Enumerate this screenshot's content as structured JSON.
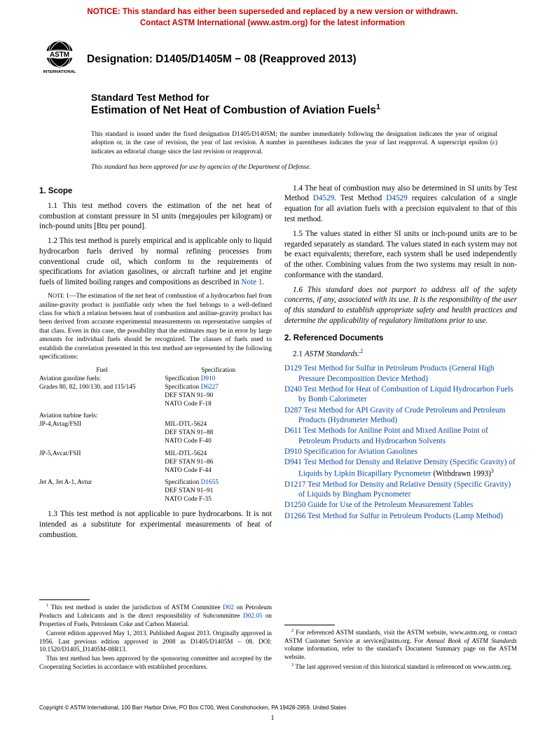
{
  "notice": {
    "line1": "NOTICE: This standard has either been superseded and replaced by a new version or withdrawn.",
    "line2": "Contact ASTM International (www.astm.org) for the latest information",
    "color": "#cc0000"
  },
  "logo": {
    "text_top": "INTERNATIONAL",
    "fill": "#000000"
  },
  "designation": "Designation: D1405/D1405M − 08 (Reapproved 2013)",
  "title": {
    "lead": "Standard Test Method for",
    "main": "Estimation of Net Heat of Combustion of Aviation Fuels",
    "sup": "1"
  },
  "issuance": "This standard is issued under the fixed designation D1405/D1405M; the number immediately following the designation indicates the year of original adoption or, in the case of revision, the year of last revision. A number in parentheses indicates the year of last reapproval. A superscript epsilon (ε) indicates an editorial change since the last revision or reapproval.",
  "dod": "This standard has been approved for use by agencies of the Department of Defense.",
  "left": {
    "h1": "1. Scope",
    "p11": "1.1 This test method covers the estimation of the net heat of combustion at constant pressure in SI units (megajoules per kilogram) or inch-pound units [Btu per pound].",
    "p12a": "1.2 This test method is purely empirical and is applicable only to liquid hydrocarbon fuels derived by normal refining processes from conventional crude oil, which conform to the requirements of specifications for aviation gasolines, or aircraft turbine and jet engine fuels of limited boiling ranges and compositions as described in ",
    "p12_link": "Note 1",
    "p12b": ".",
    "note1a": "N",
    "note1b": "OTE",
    "note1c": " 1—The estimation of the net heat of combustion of a hydrocarbon fuel from aniline-gravity product is justifiable only when the fuel belongs to a well-defined class for which a relation between heat of combustion and aniline-gravity product has been derived from accurate experimental measurements on representative samples of that class. Even in this case, the possibility that the estimates may be in error by large amounts for individual fuels should be recognized. The classes of fuels used to establish the correlation presented in this test method are represented by the following specifications:",
    "table": {
      "head_l": "Fuel",
      "head_r": "Specification",
      "g1_l1": "Aviation gasoline fuels:",
      "g1_l2": "Grades 80, 82, 100/130, and 115/145",
      "g1_r1a": "Specification ",
      "g1_r1b": "D910",
      "g1_r2a": "Specification ",
      "g1_r2b": "D6227",
      "g1_r3": "DEF STAN 91–90",
      "g1_r4": "NATO Code F-18",
      "g2_l1": "Aviation turbine fuels:",
      "g2_l2": "JP-4,Avtag/FSII",
      "g2_r1": "MIL-DTL-5624",
      "g2_r2": "DEF STAN 91–88",
      "g2_r3": "NATO Code F-40",
      "g3_l1": "JP-5,Avcat/FSII",
      "g3_r1": "MIL-DTL-5624",
      "g3_r2": "DEF STAN 91–86",
      "g3_r3": "NATO Code F-44",
      "g4_l1": "Jet A, Jet A-1, Avtur",
      "g4_r1a": "Specification ",
      "g4_r1b": "D1655",
      "g4_r2": "DEF STAN 91–91",
      "g4_r3": "NATO Code F-35"
    },
    "p13": "1.3 This test method is not applicable to pure hydrocarbons. It is not intended as a substitute for experimental measurements of heat of combustion.",
    "fn1a": " This test method is under the jurisdiction of ASTM Committee ",
    "fn1_link1": "D02",
    "fn1b": " on Petroleum Products and Lubricants and is the direct responsibility of Subcommittee ",
    "fn1_link2": "D02.05",
    "fn1c": " on Properties of Fuels, Petroleum Coke and Carbon Material.",
    "fn1d": "Current edition approved May 1, 2013. Published August 2013. Originally approved in 1956. Last previous edition approved in 2008 as D1405/D1405M – 08. DOI: 10.1520/D1405_D1405M-08R13.",
    "fn1e": "This test method has been approved by the sponsoring committee and accepted by the Cooperating Societies in accordance with established procedures."
  },
  "right": {
    "p14a": "1.4 The heat of combustion may also be determined in SI units by Test Method ",
    "p14_l1": "D4529",
    "p14b": ". Test Method ",
    "p14_l2": "D4529",
    "p14c": " requires calculation of a single equation for all aviation fuels with a precision equivalent to that of this test method.",
    "p15": "1.5 The values stated in either SI units or inch-pound units are to be regarded separately as standard. The values stated in each system may not be exact equivalents; therefore, each system shall be used independently of the other. Combining values from the two systems may result in non-conformance with the standard.",
    "p16": "1.6 This standard does not purport to address all of the safety concerns, if any, associated with its use. It is the responsibility of the user of this standard to establish appropriate safety and health practices and determine the applicability of regulatory limitations prior to use.",
    "h2": "2. Referenced Documents",
    "p21a": "2.1 ",
    "p21b": "ASTM Standards:",
    "p21sup": "2",
    "refs": [
      {
        "id": "D129",
        "t": "Test Method for Sulfur in Petroleum Products (General High Pressure Decomposition Device Method)"
      },
      {
        "id": "D240",
        "t": "Test Method for Heat of Combustion of Liquid Hydrocarbon Fuels by Bomb Calorimeter"
      },
      {
        "id": "D287",
        "t": "Test Method for API Gravity of Crude Petroleum and Petroleum Products (Hydrometer Method)"
      },
      {
        "id": "D611",
        "t": "Test Methods for Aniline Point and Mixed Aniline Point of Petroleum Products and Hydrocarbon Solvents"
      },
      {
        "id": "D910",
        "t": "Specification for Aviation Gasolines"
      },
      {
        "id": "D941",
        "t": "Test Method for Density and Relative Density (Specific Gravity) of Liquids by Lipkin Bicapillary Pycnometer",
        "wd": " (Withdrawn 1993)",
        "sup": "3"
      },
      {
        "id": "D1217",
        "t": "Test Method for Density and Relative Density (Specific Gravity) of Liquids by Bingham Pycnometer"
      },
      {
        "id": "D1250",
        "t": "Guide for Use of the Petroleum Measurement Tables"
      },
      {
        "id": "D1266",
        "t": "Test Method for Sulfur in Petroleum Products (Lamp Method)"
      }
    ],
    "fn2a": " For referenced ASTM standards, visit the ASTM website, www.astm.org, or contact ASTM Customer Service at service@astm.org. For ",
    "fn2b": "Annual Book of ASTM Standards",
    "fn2c": " volume information, refer to the standard's Document Summary page on the ASTM website.",
    "fn3": " The last approved version of this historical standard is referenced on www.astm.org."
  },
  "copyright": "Copyright © ASTM International, 100 Barr Harbor Drive, PO Box C700, West Conshohocken, PA 19428-2959. United States",
  "pagenum": "1",
  "link_color": "#0645ad"
}
